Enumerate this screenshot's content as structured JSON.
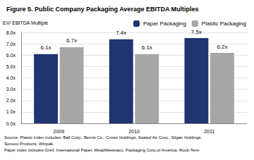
{
  "chart_data": {
    "type": "bar",
    "title": "Figure 5. Public Company Packaging Average EBITDA Multiples",
    "y_label": "EV/ EBITDA Multiple",
    "categories": [
      "2009",
      "2010",
      "2011"
    ],
    "series": [
      {
        "name": "Paper Packaging",
        "color": "#1f3470",
        "values": [
          6.1,
          7.4,
          7.5
        ],
        "value_labels": [
          "6.1x",
          "7.4x",
          "7.5x"
        ]
      },
      {
        "name": "Plastic Packaging",
        "color": "#a6a6a6",
        "values": [
          6.7,
          6.1,
          6.2
        ],
        "value_labels": [
          "6.7x",
          "6.1x",
          "6.2x"
        ]
      }
    ],
    "ylim": [
      0,
      8
    ],
    "yticks": [
      {
        "value": 0,
        "label": "0.0x"
      },
      {
        "value": 1,
        "label": "1.0x"
      },
      {
        "value": 2,
        "label": "2.0x"
      },
      {
        "value": 3,
        "label": "3.0x"
      },
      {
        "value": 4,
        "label": "4.0x"
      },
      {
        "value": 5,
        "label": "5.0x"
      },
      {
        "value": 6,
        "label": "6.0x"
      },
      {
        "value": 7,
        "label": "7.0x"
      },
      {
        "value": 8,
        "label": "8.0x"
      }
    ],
    "grid": true,
    "legend": "top-right",
    "data_labels": true,
    "annotations": [
      "Source: Plastic Index includes: Ball Corp., Bemis Co., Crown Holdings, Sealed Air Corp., Silgan Holdings,",
      "Sonoco Products, Winpak.",
      "Paper index includes Greif, International Paper, MeadWestvaco, Packaging Corp.of America, Rock-Tenn"
    ]
  }
}
